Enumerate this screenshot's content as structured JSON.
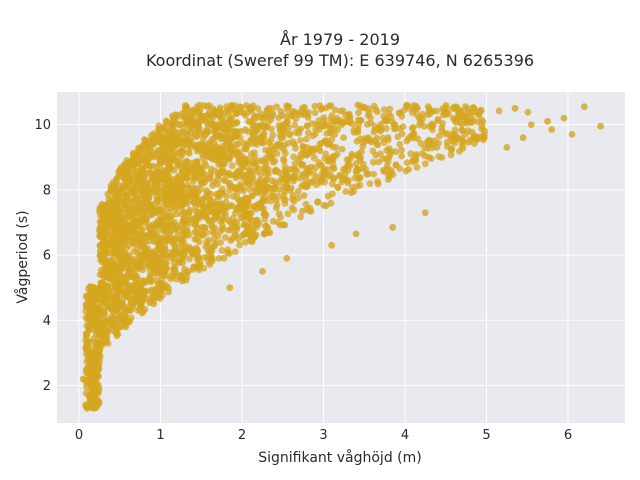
{
  "chart_data": {
    "type": "scatter",
    "title_lines": [
      "År 1979 - 2019",
      "Koordinat (Sweref 99 TM): E 639746, N 6265396"
    ],
    "xlabel": "Signifikant våghöjd (m)",
    "ylabel": "Vågperiod (s)",
    "xlim": [
      -0.27,
      6.7
    ],
    "ylim": [
      0.85,
      11.0
    ],
    "xticks": [
      0,
      1,
      2,
      3,
      4,
      5,
      6
    ],
    "yticks": [
      2,
      4,
      6,
      8,
      10
    ],
    "grid": true,
    "legend": "none",
    "marker_color": "#d4a51f",
    "plot_bg": "#e9e9f0",
    "outlier_points": [
      {
        "x": 4.3,
        "y": 10.4
      },
      {
        "x": 4.85,
        "y": 10.5
      },
      {
        "x": 5.35,
        "y": 10.5
      },
      {
        "x": 6.2,
        "y": 10.55
      },
      {
        "x": 6.4,
        "y": 9.95
      },
      {
        "x": 5.95,
        "y": 10.2
      },
      {
        "x": 5.75,
        "y": 10.1
      },
      {
        "x": 5.55,
        "y": 10.0
      },
      {
        "x": 5.8,
        "y": 9.85
      },
      {
        "x": 6.05,
        "y": 9.7
      },
      {
        "x": 5.45,
        "y": 9.6
      },
      {
        "x": 5.25,
        "y": 9.3
      },
      {
        "x": 3.55,
        "y": 9.6
      },
      {
        "x": 3.7,
        "y": 9.8
      },
      {
        "x": 4.6,
        "y": 9.6
      },
      {
        "x": 2.05,
        "y": 9.25
      },
      {
        "x": 1.0,
        "y": 8.95
      },
      {
        "x": 1.05,
        "y": 9.15
      },
      {
        "x": 0.6,
        "y": 8.65
      },
      {
        "x": 0.55,
        "y": 8.35
      },
      {
        "x": 0.1,
        "y": 1.3
      },
      {
        "x": 0.05,
        "y": 2.2
      },
      {
        "x": 3.1,
        "y": 6.3
      },
      {
        "x": 3.85,
        "y": 6.85
      },
      {
        "x": 4.25,
        "y": 7.3
      },
      {
        "x": 2.55,
        "y": 5.9
      },
      {
        "x": 2.25,
        "y": 5.5
      },
      {
        "x": 1.85,
        "y": 5.0
      },
      {
        "x": 3.4,
        "y": 6.65
      }
    ]
  }
}
